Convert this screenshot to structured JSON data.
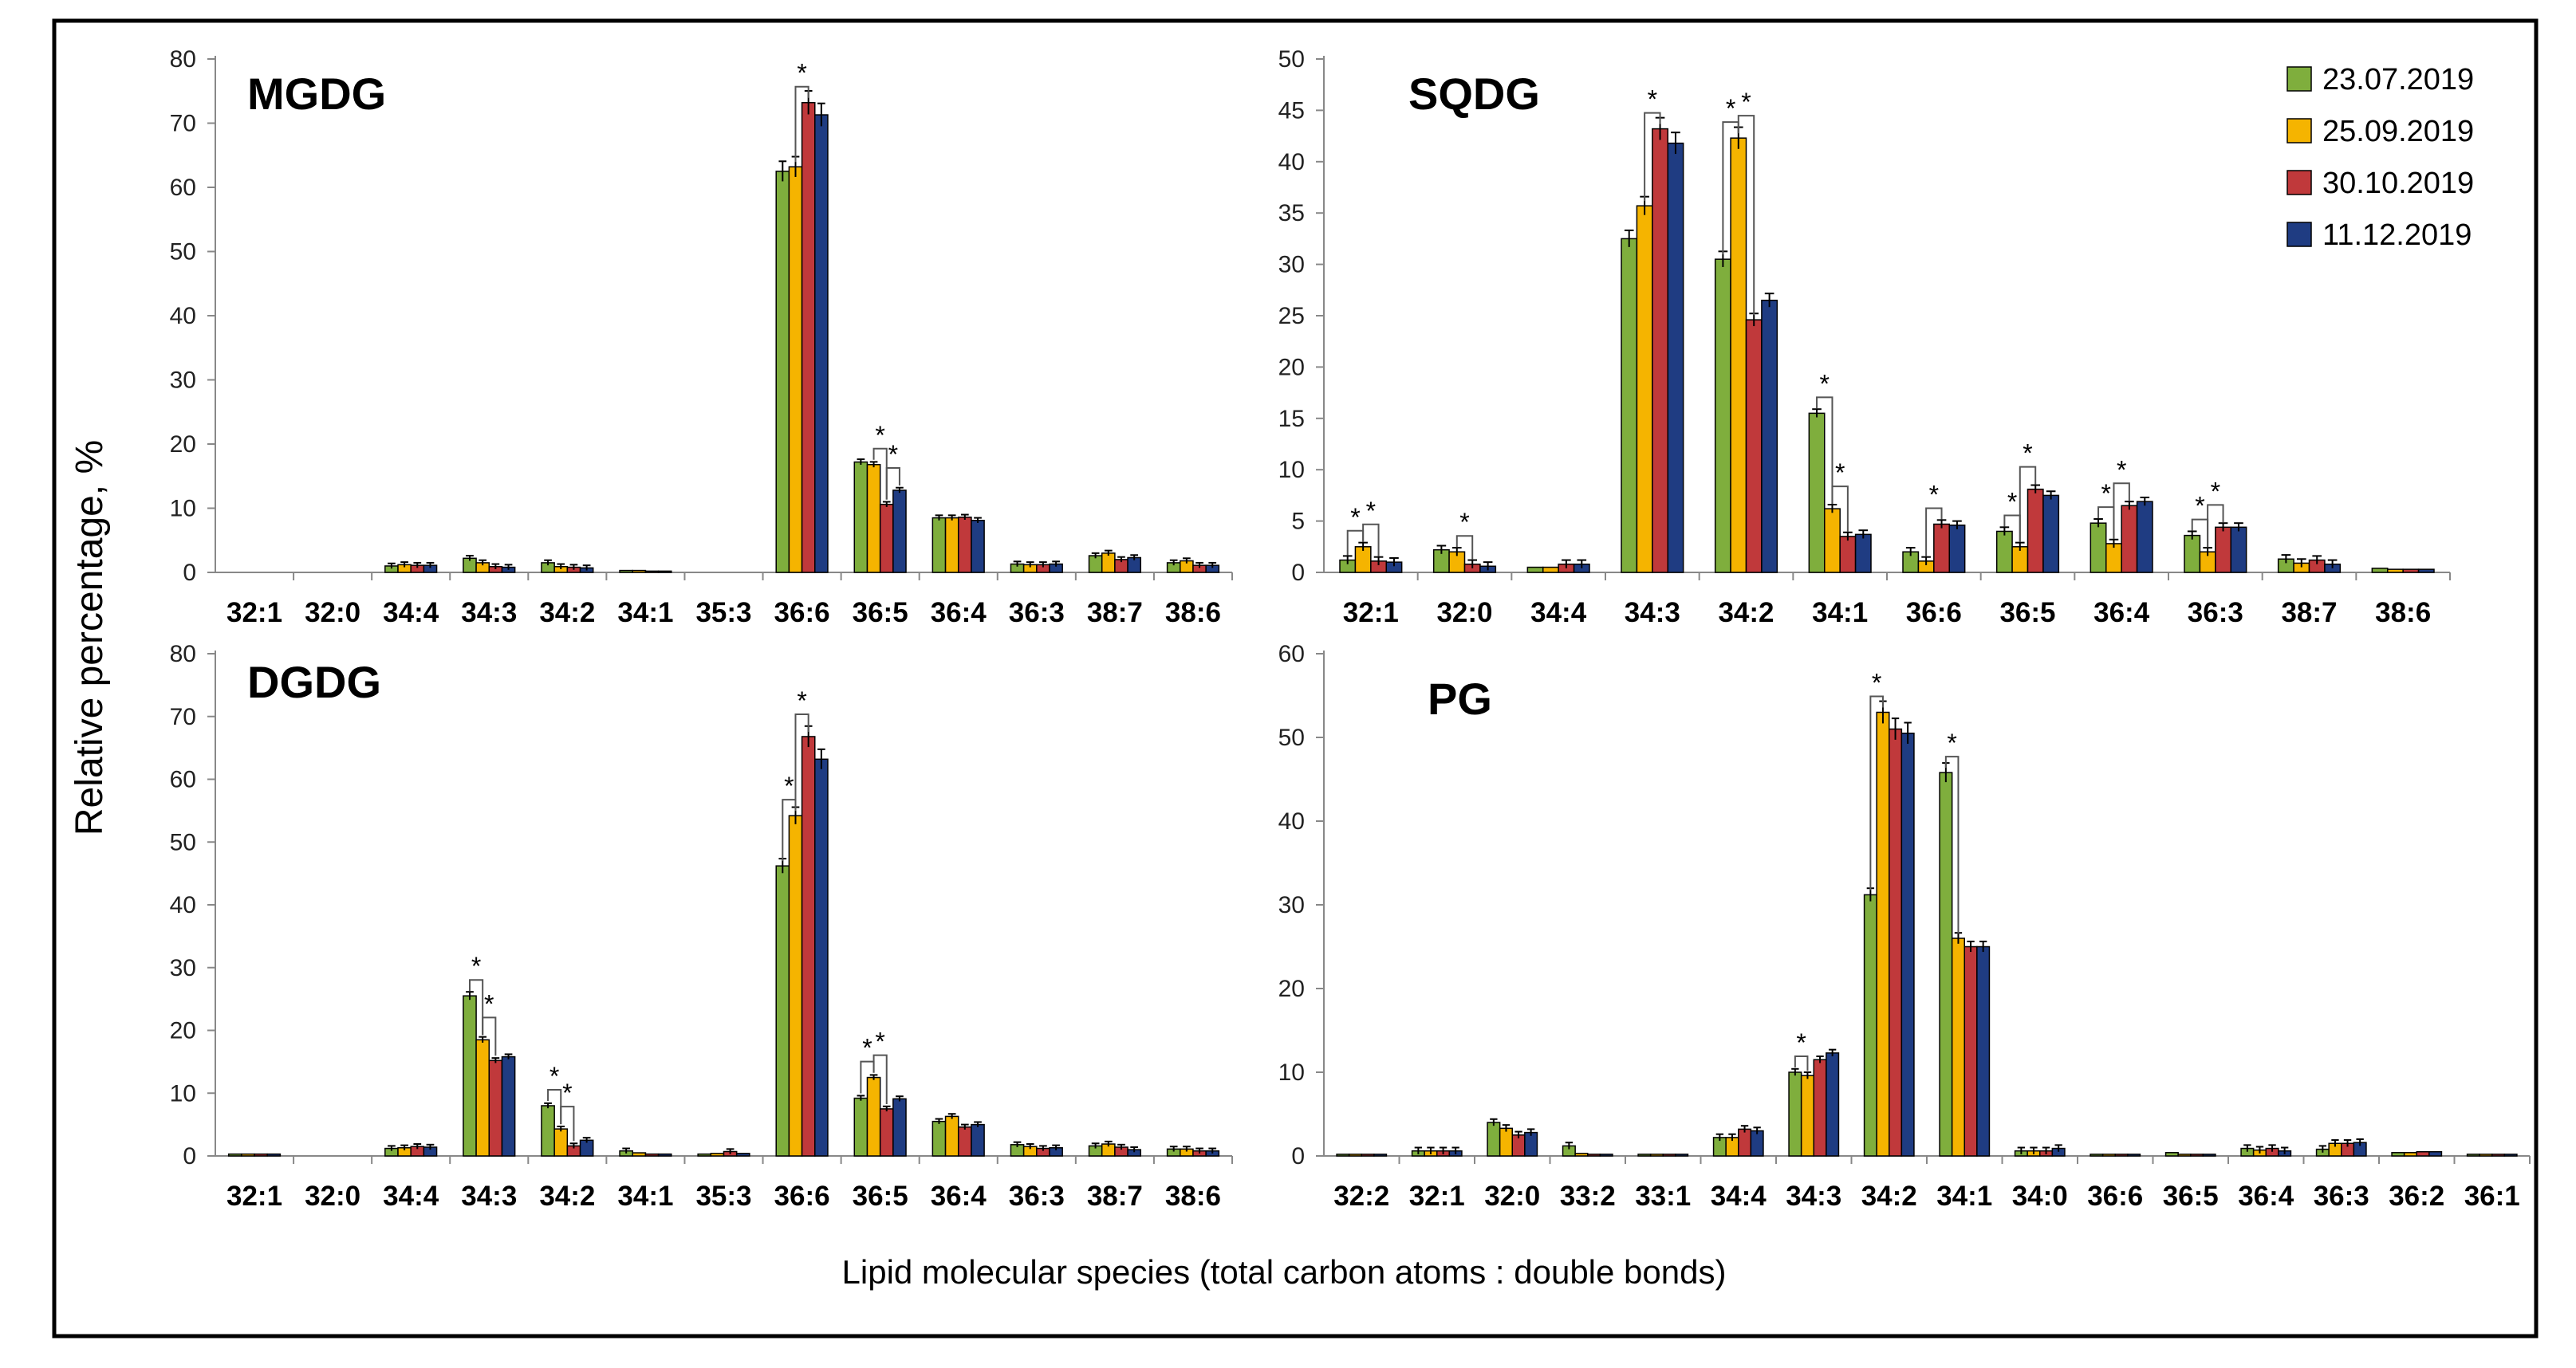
{
  "figure": {
    "ylabel": "Relative percentage, %",
    "xlabel": "Lipid molecular species (total carbon atoms : double bonds)",
    "significance_marker": "*"
  },
  "legend": [
    {
      "label": "23.07.2019",
      "color": "#7FAE3D"
    },
    {
      "label": "25.09.2019",
      "color": "#F5B400"
    },
    {
      "label": "30.10.2019",
      "color": "#C0393B"
    },
    {
      "label": "11.12.2019",
      "color": "#1F3C82"
    }
  ],
  "chart_data": [
    {
      "type": "bar",
      "title": "MGDG",
      "ylim": [
        0,
        80
      ],
      "yticks": [
        0,
        10,
        20,
        30,
        40,
        50,
        60,
        70,
        80
      ],
      "categories": [
        "32:1",
        "32:0",
        "34:4",
        "34:3",
        "34:2",
        "34:1",
        "35:3",
        "36:6",
        "36:5",
        "36:4",
        "36:3",
        "38:7",
        "38:6"
      ],
      "series": [
        {
          "name": "23.07.2019",
          "values": [
            0,
            0,
            1.0,
            2.2,
            1.5,
            0.3,
            0,
            62.5,
            17.2,
            8.5,
            1.3,
            2.6,
            1.5
          ]
        },
        {
          "name": "25.09.2019",
          "values": [
            0,
            0,
            1.2,
            1.5,
            0.9,
            0.3,
            0,
            63.2,
            16.8,
            8.5,
            1.2,
            3.0,
            1.8
          ]
        },
        {
          "name": "30.10.2019",
          "values": [
            0,
            0,
            1.1,
            0.9,
            0.8,
            0.2,
            0,
            73.2,
            10.6,
            8.6,
            1.2,
            2.0,
            1.1
          ]
        },
        {
          "name": "11.12.2019",
          "values": [
            0,
            0,
            1.1,
            0.8,
            0.7,
            0.2,
            0,
            71.3,
            12.8,
            8.1,
            1.3,
            2.3,
            1.1
          ]
        }
      ],
      "significance": [
        {
          "category": "36:6",
          "pairs": [
            [
              1,
              2
            ]
          ]
        },
        {
          "category": "36:5",
          "pairs": [
            [
              1,
              2
            ],
            [
              2,
              3
            ]
          ]
        }
      ]
    },
    {
      "type": "bar",
      "title": "SQDG",
      "ylim": [
        0,
        50
      ],
      "yticks": [
        0,
        5,
        10,
        15,
        20,
        25,
        30,
        35,
        40,
        45,
        50
      ],
      "categories": [
        "32:1",
        "32:0",
        "34:4",
        "34:3",
        "34:2",
        "34:1",
        "36:6",
        "36:5",
        "36:4",
        "36:3",
        "38:7",
        "38:6"
      ],
      "series": [
        {
          "name": "23.07.2019",
          "values": [
            1.2,
            2.2,
            0.5,
            32.5,
            30.5,
            15.5,
            2.0,
            4.0,
            4.8,
            3.6,
            1.3,
            0.4
          ]
        },
        {
          "name": "25.09.2019",
          "values": [
            2.5,
            2.0,
            0.5,
            35.7,
            42.3,
            6.2,
            1.1,
            2.5,
            2.8,
            2.0,
            0.9,
            0.3
          ]
        },
        {
          "name": "30.10.2019",
          "values": [
            1.1,
            0.8,
            0.8,
            43.2,
            24.6,
            3.5,
            4.7,
            8.1,
            6.5,
            4.4,
            1.2,
            0.3
          ]
        },
        {
          "name": "11.12.2019",
          "values": [
            1.0,
            0.6,
            0.8,
            41.8,
            26.5,
            3.7,
            4.6,
            7.5,
            6.9,
            4.4,
            0.8,
            0.3
          ]
        }
      ],
      "significance": [
        {
          "category": "32:1",
          "pairs": [
            [
              0,
              1
            ],
            [
              1,
              2
            ]
          ]
        },
        {
          "category": "32:0",
          "pairs": [
            [
              1,
              2
            ]
          ]
        },
        {
          "category": "34:3",
          "pairs": [
            [
              1,
              2
            ]
          ]
        },
        {
          "category": "34:2",
          "pairs": [
            [
              0,
              1
            ],
            [
              1,
              2
            ]
          ]
        },
        {
          "category": "34:1",
          "pairs": [
            [
              0,
              1
            ],
            [
              1,
              2
            ]
          ]
        },
        {
          "category": "36:6",
          "pairs": [
            [
              1,
              2
            ]
          ]
        },
        {
          "category": "36:5",
          "pairs": [
            [
              0,
              1
            ],
            [
              1,
              2
            ]
          ]
        },
        {
          "category": "36:4",
          "pairs": [
            [
              0,
              1
            ],
            [
              1,
              2
            ]
          ]
        },
        {
          "category": "36:3",
          "pairs": [
            [
              0,
              1
            ],
            [
              1,
              2
            ]
          ]
        }
      ]
    },
    {
      "type": "bar",
      "title": "DGDG",
      "ylim": [
        0,
        80
      ],
      "yticks": [
        0,
        10,
        20,
        30,
        40,
        50,
        60,
        70,
        80
      ],
      "categories": [
        "32:1",
        "32:0",
        "34:4",
        "34:3",
        "34:2",
        "34:1",
        "35:3",
        "36:6",
        "36:5",
        "36:4",
        "36:3",
        "38:7",
        "38:6"
      ],
      "series": [
        {
          "name": "23.07.2019",
          "values": [
            0.3,
            0,
            1.2,
            25.5,
            8.0,
            0.8,
            0.3,
            46.2,
            9.2,
            5.5,
            1.8,
            1.6,
            1.1
          ]
        },
        {
          "name": "25.09.2019",
          "values": [
            0.3,
            0,
            1.3,
            18.5,
            4.3,
            0.5,
            0.4,
            54.2,
            12.5,
            6.3,
            1.5,
            1.9,
            1.1
          ]
        },
        {
          "name": "30.10.2019",
          "values": [
            0.3,
            0,
            1.5,
            15.2,
            1.6,
            0.3,
            0.7,
            66.8,
            7.5,
            4.6,
            1.2,
            1.4,
            0.8
          ]
        },
        {
          "name": "11.12.2019",
          "values": [
            0.3,
            0,
            1.4,
            15.8,
            2.5,
            0.3,
            0.4,
            63.2,
            9.1,
            5.0,
            1.3,
            1.0,
            0.8
          ]
        }
      ],
      "significance": [
        {
          "category": "34:3",
          "pairs": [
            [
              0,
              1
            ],
            [
              1,
              2
            ]
          ]
        },
        {
          "category": "34:2",
          "pairs": [
            [
              0,
              1
            ],
            [
              1,
              2
            ]
          ]
        },
        {
          "category": "36:6",
          "pairs": [
            [
              0,
              1
            ],
            [
              1,
              2
            ]
          ]
        },
        {
          "category": "36:5",
          "pairs": [
            [
              0,
              1
            ],
            [
              1,
              2
            ]
          ]
        }
      ]
    },
    {
      "type": "bar",
      "title": "PG",
      "ylim": [
        0,
        60
      ],
      "yticks": [
        0,
        10,
        20,
        30,
        40,
        50,
        60
      ],
      "categories": [
        "32:2",
        "32:1",
        "32:0",
        "33:2",
        "33:1",
        "34:4",
        "34:3",
        "34:2",
        "34:1",
        "34:0",
        "36:6",
        "36:5",
        "36:4",
        "36:3",
        "36:2",
        "36:1"
      ],
      "series": [
        {
          "name": "23.07.2019",
          "values": [
            0.2,
            0.6,
            4.0,
            1.2,
            0.2,
            2.2,
            10.0,
            31.2,
            45.8,
            0.6,
            0.2,
            0.4,
            0.9,
            0.8,
            0.4,
            0.2
          ]
        },
        {
          "name": "25.09.2019",
          "values": [
            0.2,
            0.6,
            3.3,
            0.3,
            0.2,
            2.2,
            9.6,
            53.0,
            26.0,
            0.6,
            0.2,
            0.2,
            0.7,
            1.5,
            0.4,
            0.2
          ]
        },
        {
          "name": "30.10.2019",
          "values": [
            0.2,
            0.6,
            2.5,
            0.2,
            0.2,
            3.2,
            11.5,
            51.0,
            25.0,
            0.6,
            0.2,
            0.2,
            0.9,
            1.5,
            0.5,
            0.2
          ]
        },
        {
          "name": "11.12.2019",
          "values": [
            0.2,
            0.6,
            2.8,
            0.2,
            0.2,
            3.0,
            12.3,
            50.5,
            25.0,
            0.9,
            0.2,
            0.2,
            0.6,
            1.6,
            0.5,
            0.2
          ]
        }
      ],
      "significance": [
        {
          "category": "34:3",
          "pairs": [
            [
              0,
              1
            ]
          ]
        },
        {
          "category": "34:2",
          "pairs": [
            [
              0,
              1
            ]
          ]
        },
        {
          "category": "34:1",
          "pairs": [
            [
              0,
              1
            ]
          ]
        }
      ]
    }
  ]
}
